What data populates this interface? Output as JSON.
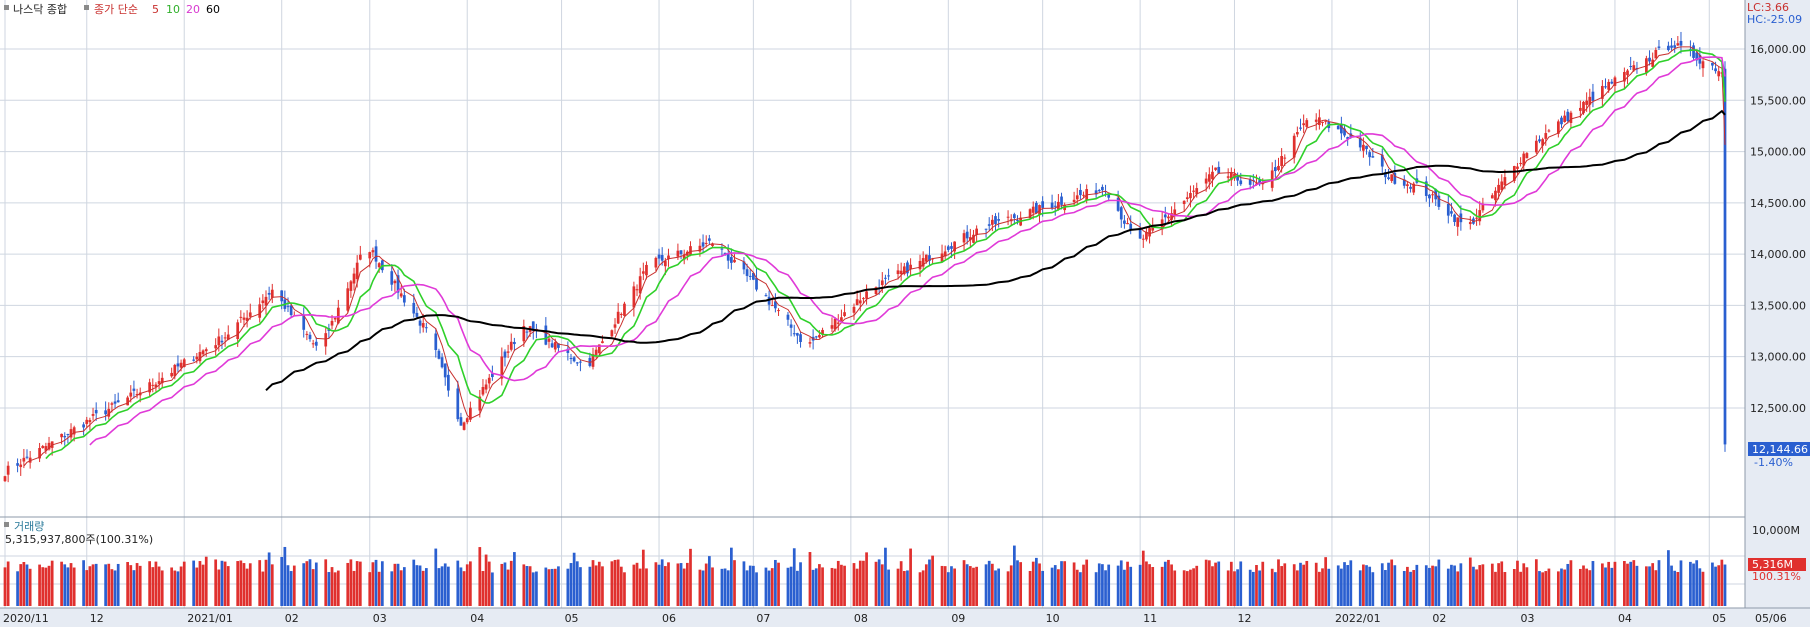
{
  "colors": {
    "up": "#e0302e",
    "down": "#2a5fd0",
    "ma5": "#c8302e",
    "ma10": "#2fd02a",
    "ma20": "#e03ad8",
    "ma60": "#000000",
    "grid": "#cfd6e0",
    "axis_bg": "#e6ebf3"
  },
  "legend": {
    "symbol": "나스닥 종합",
    "label": "종가 단순",
    "ma5": "5",
    "ma10": "10",
    "ma20": "20",
    "ma60": "60"
  },
  "info": {
    "lc": "LC:3.66",
    "hc": "HC:-25.09"
  },
  "last_price": {
    "value": "12,144.66",
    "change": "-1.40%"
  },
  "volume_panel": {
    "title": "거래량",
    "summary": "5,315,937,800주(100.31%)",
    "axis_label": "10,000M",
    "last_value": "5,316M",
    "last_pct": "100.31%"
  },
  "chart_data": [
    {
      "type": "candlestick",
      "title": "나스닥 종합",
      "yticks": [
        "16,000.00",
        "15,500.00",
        "15,000.00",
        "14,500.00",
        "14,000.00",
        "13,500.00",
        "13,000.00",
        "12,500.00"
      ],
      "yvals": [
        16000,
        15500,
        15000,
        14500,
        14000,
        13500,
        13000,
        12500
      ],
      "ylim": [
        11700,
        16400
      ],
      "date_range": [
        "2020-11-05",
        "2022-05-06"
      ],
      "x_tick_labels": [
        "2020/11",
        "12",
        "2021/01",
        "02",
        "03",
        "04",
        "05",
        "06",
        "07",
        "08",
        "09",
        "10",
        "11",
        "12",
        "2022/01",
        "02",
        "03",
        "04",
        "05",
        "05/06"
      ],
      "ma_periods": [
        5,
        10,
        20,
        60
      ],
      "anchors": [
        [
          11880,
          0
        ],
        [
          12350,
          25
        ],
        [
          12700,
          45
        ],
        [
          12900,
          55
        ],
        [
          13200,
          70
        ],
        [
          13650,
          85
        ],
        [
          13050,
          100
        ],
        [
          14100,
          115
        ],
        [
          13200,
          135
        ],
        [
          12350,
          145
        ],
        [
          13300,
          165
        ],
        [
          12900,
          185
        ],
        [
          13900,
          205
        ],
        [
          14120,
          225
        ],
        [
          13650,
          240
        ],
        [
          13100,
          255
        ],
        [
          13650,
          275
        ],
        [
          14250,
          310
        ],
        [
          14450,
          330
        ],
        [
          14650,
          350
        ],
        [
          14100,
          360
        ],
        [
          14800,
          385
        ],
        [
          14650,
          400
        ],
        [
          15350,
          415
        ],
        [
          15100,
          430
        ],
        [
          14750,
          440
        ],
        [
          14650,
          450
        ],
        [
          14250,
          465
        ],
        [
          15050,
          485
        ],
        [
          15650,
          510
        ],
        [
          16050,
          530
        ],
        [
          15800,
          545
        ],
        [
          15400,
          560
        ],
        [
          15100,
          580
        ],
        [
          15850,
          585
        ],
        [
          15600,
          595
        ],
        [
          15200,
          615
        ],
        [
          13700,
          630
        ],
        [
          14050,
          645
        ],
        [
          14000,
          660
        ],
        [
          13200,
          675
        ],
        [
          13500,
          690
        ],
        [
          12800,
          700
        ],
        [
          13600,
          715
        ],
        [
          14550,
          730
        ],
        [
          14100,
          750
        ],
        [
          13400,
          760
        ],
        [
          13200,
          775
        ],
        [
          12600,
          790
        ],
        [
          12800,
          795
        ],
        [
          12150,
          797
        ]
      ]
    },
    {
      "type": "bar",
      "title": "거래량",
      "ylim_max": 10000,
      "ylabel": "M",
      "last": 5316
    }
  ]
}
